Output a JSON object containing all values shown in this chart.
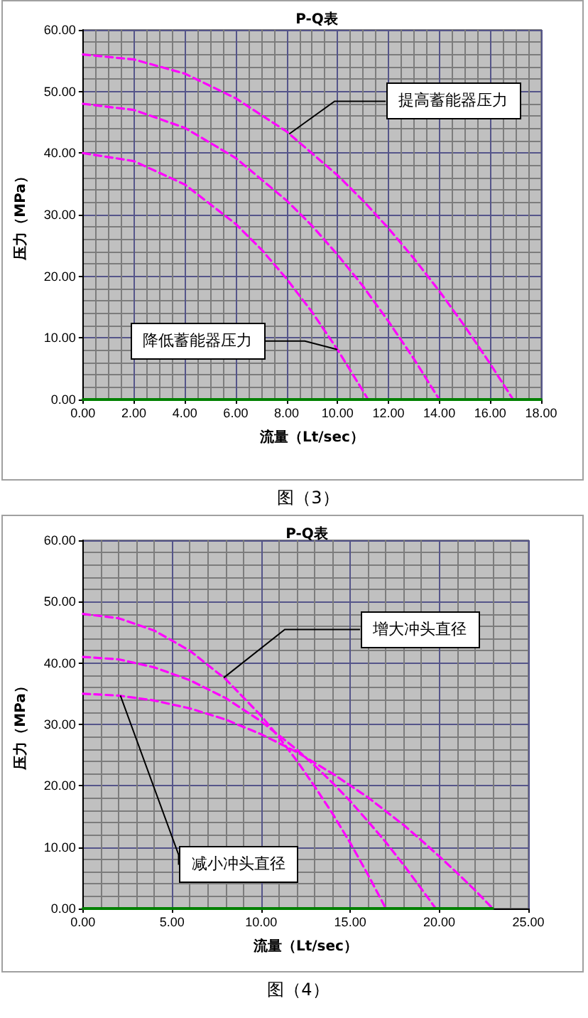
{
  "chart_data": [
    {
      "type": "line",
      "title": "P-Q表",
      "xlabel": "流量（Lt/sec）",
      "ylabel": "压力（MPa）",
      "xlim": [
        0,
        18
      ],
      "xticks": [
        {
          "value": 0,
          "label": "0.00"
        },
        {
          "value": 2,
          "label": "2.00"
        },
        {
          "value": 4,
          "label": "4.00"
        },
        {
          "value": 6,
          "label": "6.00"
        },
        {
          "value": 8,
          "label": "8.00"
        },
        {
          "value": 10,
          "label": "10.00"
        },
        {
          "value": 12,
          "label": "12.00"
        },
        {
          "value": 14,
          "label": "14.00"
        },
        {
          "value": 16,
          "label": "16.00"
        },
        {
          "value": 18,
          "label": "18.00"
        }
      ],
      "ylim": [
        0,
        60
      ],
      "yticks": [
        {
          "value": 0,
          "label": "0.00"
        },
        {
          "value": 10,
          "label": "10.00"
        },
        {
          "value": 20,
          "label": "20.00"
        },
        {
          "value": 30,
          "label": "30.00"
        },
        {
          "value": 40,
          "label": "40.00"
        },
        {
          "value": 50,
          "label": "50.00"
        },
        {
          "value": 60,
          "label": "60.00"
        }
      ],
      "grid": true,
      "line_style": "dashed",
      "series": [
        {
          "color": "#ff00ff",
          "x": [
            0,
            2,
            4,
            6,
            8,
            10,
            11,
            12,
            13,
            14,
            15,
            16,
            16.9
          ],
          "values": [
            56,
            55.2,
            52.9,
            48.9,
            43.5,
            36.4,
            32.3,
            27.8,
            22.9,
            17.6,
            11.9,
            5.8,
            0
          ]
        },
        {
          "color": "#ff00ff",
          "x": [
            0,
            2,
            4,
            6,
            8,
            9,
            10,
            11,
            12,
            13,
            14
          ],
          "values": [
            48,
            47.0,
            44.1,
            39.2,
            32.3,
            28.2,
            23.5,
            18.4,
            12.7,
            6.6,
            0
          ]
        },
        {
          "color": "#ff00ff",
          "x": [
            0,
            2,
            4,
            6,
            7,
            8,
            9,
            10,
            11,
            11.2
          ],
          "values": [
            40,
            38.7,
            34.9,
            28.5,
            24.4,
            19.6,
            14.2,
            8.1,
            1.4,
            0
          ]
        },
        {
          "color": "#008000",
          "line_style": "solid",
          "x": [
            0,
            18
          ],
          "values": [
            0,
            0
          ]
        }
      ],
      "annotations": [
        {
          "text": "提高蓄能器压力",
          "x": 8.1,
          "y": 43.1
        },
        {
          "text": "降低蓄能器压力",
          "x": 10,
          "y": 8.1
        },
        "图（3）"
      ]
    },
    {
      "type": "line",
      "title": "P-Q表",
      "xlabel": "流量（Lt/sec）",
      "ylabel": "压力（MPa）",
      "xlim": [
        0,
        25
      ],
      "xticks": [
        {
          "value": 0,
          "label": "0.00"
        },
        {
          "value": 5,
          "label": "5.00"
        },
        {
          "value": 10,
          "label": "10.00"
        },
        {
          "value": 15,
          "label": "15.00"
        },
        {
          "value": 20,
          "label": "20.00"
        },
        {
          "value": 25,
          "label": "25.00"
        }
      ],
      "ylim": [
        0,
        60
      ],
      "yticks": [
        {
          "value": 0,
          "label": "0.00"
        },
        {
          "value": 10,
          "label": "10.00"
        },
        {
          "value": 20,
          "label": "20.00"
        },
        {
          "value": 30,
          "label": "30.00"
        },
        {
          "value": 40,
          "label": "40.00"
        },
        {
          "value": 50,
          "label": "50.00"
        },
        {
          "value": 60,
          "label": "60.00"
        }
      ],
      "grid": true,
      "line_style": "dashed",
      "series": [
        {
          "color": "#ff00ff",
          "x": [
            0,
            2,
            4,
            6,
            8,
            10,
            11,
            12,
            13,
            14,
            15,
            16,
            17
          ],
          "values": [
            48,
            47.3,
            45.3,
            42.0,
            37.4,
            31.4,
            27.9,
            24.1,
            19.9,
            15.5,
            10.7,
            5.5,
            0
          ]
        },
        {
          "color": "#ff00ff",
          "x": [
            0,
            2,
            4,
            6,
            8,
            10,
            12,
            13,
            14,
            15,
            16,
            17,
            18,
            19,
            19.8
          ],
          "values": [
            41,
            40.6,
            39.3,
            37.2,
            34.3,
            30.5,
            25.9,
            23.3,
            20.5,
            17.5,
            14.2,
            10.8,
            7.1,
            3.2,
            0
          ]
        },
        {
          "color": "#ff00ff",
          "x": [
            0,
            2,
            4,
            6,
            8,
            10,
            12,
            14,
            16,
            18,
            19,
            20,
            21,
            22,
            23
          ],
          "values": [
            35,
            34.7,
            33.9,
            32.6,
            30.8,
            28.4,
            25.5,
            22.0,
            18.1,
            13.6,
            11.1,
            8.5,
            5.8,
            3.0,
            0
          ]
        },
        {
          "color": "#008000",
          "line_style": "solid",
          "x": [
            0,
            23
          ],
          "values": [
            0,
            0
          ]
        }
      ],
      "annotations": [
        {
          "text": "增大冲头直径",
          "x": 7.9,
          "y": 37.6
        },
        {
          "text": "减小冲头直径",
          "x": 2.1,
          "y": 34.7
        },
        "图（4）"
      ]
    }
  ]
}
